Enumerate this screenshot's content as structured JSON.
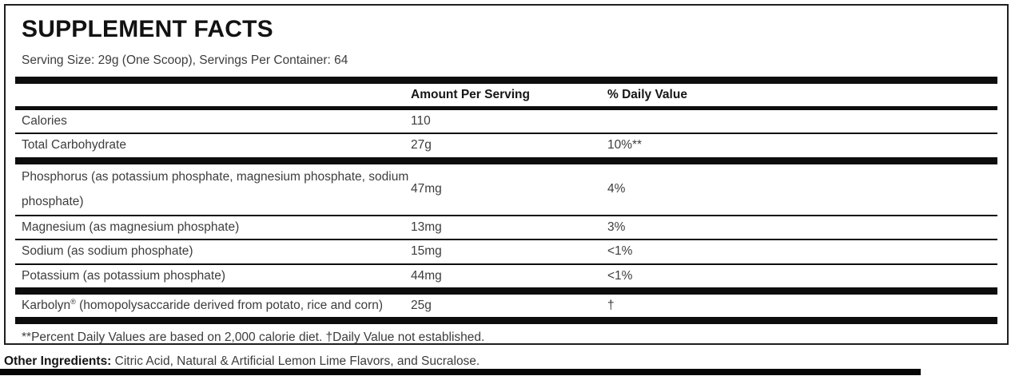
{
  "label": {
    "title": "SUPPLEMENT FACTS",
    "serving_info": "Serving Size: 29g (One Scoop), Servings Per Container: 64",
    "columns": {
      "amount": "Amount Per Serving",
      "dv": "% Daily Value"
    },
    "rows": [
      {
        "name": "Calories",
        "amount": "110",
        "dv": ""
      },
      {
        "name": "Total Carbohydrate",
        "amount": "27g",
        "dv": "10%**"
      },
      {
        "name": "Phosphorus (as potassium phosphate, magnesium phosphate, sodium phosphate)",
        "amount": "47mg",
        "dv": "4%"
      },
      {
        "name": "Magnesium (as magnesium phosphate)",
        "amount": "13mg",
        "dv": "3%"
      },
      {
        "name": "Sodium (as sodium phosphate)",
        "amount": "15mg",
        "dv": "<1%"
      },
      {
        "name": "Potassium (as potassium phosphate)",
        "amount": "44mg",
        "dv": "<1%"
      },
      {
        "name_pre": "Karbolyn",
        "name_sup": "®",
        "name_post": " (homopolysaccaride derived from potato, rice and corn)",
        "amount": "25g",
        "dv": "†"
      }
    ],
    "footnote": "**Percent Daily Values are based on 2,000 calorie diet. †Daily Value not established."
  },
  "other_ingredients": {
    "label": "Other Ingredients:",
    "text": " Citric Acid, Natural & Artificial Lemon Lime Flavors, and Sucralose."
  },
  "colors": {
    "bar_black": "#0d0d0d",
    "border_black": "#1f1f1f",
    "text_dark": "#3d3d3d",
    "text_heading": "#121212",
    "background": "#ffffff"
  }
}
